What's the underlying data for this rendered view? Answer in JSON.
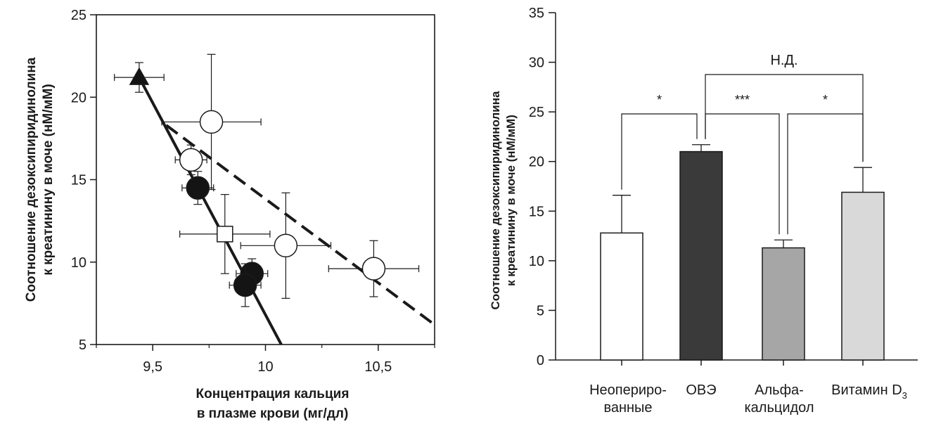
{
  "chart_data": [
    {
      "type": "scatter",
      "title": "",
      "xlabel_lines": [
        "Концентрация кальция",
        "в плазме крови (мг/дл)"
      ],
      "ylabel_lines": [
        "Соотношение дезоксипиридинолина",
        "к креатинину в моче (нМ/мМ)"
      ],
      "xlim": [
        9.25,
        10.75
      ],
      "ylim": [
        5,
        25
      ],
      "x_ticks": [
        9.5,
        10,
        10.5
      ],
      "x_tick_labels": [
        "9,5",
        "10",
        "10,5"
      ],
      "y_ticks": [
        5,
        10,
        15,
        20,
        25
      ],
      "y_tick_labels": [
        "5",
        "10",
        "15",
        "20",
        "25"
      ],
      "grid": false,
      "points": [
        {
          "marker": "triangle",
          "fill": "filled",
          "x": 9.44,
          "y": 21.2,
          "xerr": 0.11,
          "yerr": 0.9
        },
        {
          "marker": "circle",
          "fill": "open",
          "x": 9.76,
          "y": 18.5,
          "xerr": 0.22,
          "yerr": 4.1
        },
        {
          "marker": "circle",
          "fill": "open",
          "x": 9.67,
          "y": 16.2,
          "xerr": 0.07,
          "yerr": 0.9
        },
        {
          "marker": "circle",
          "fill": "filled",
          "x": 9.7,
          "y": 14.5,
          "xerr": 0.07,
          "yerr": 1.0
        },
        {
          "marker": "square",
          "fill": "open",
          "x": 9.82,
          "y": 11.7,
          "xerr": 0.2,
          "yerr": 2.4
        },
        {
          "marker": "circle",
          "fill": "open",
          "x": 10.09,
          "y": 11.0,
          "xerr": 0.2,
          "yerr": 3.2
        },
        {
          "marker": "circle",
          "fill": "filled",
          "x": 9.94,
          "y": 9.3,
          "xerr": 0.07,
          "yerr": 0.9
        },
        {
          "marker": "circle",
          "fill": "filled",
          "x": 9.91,
          "y": 8.6,
          "xerr": 0.07,
          "yerr": 1.3
        },
        {
          "marker": "circle",
          "fill": "open",
          "x": 10.48,
          "y": 9.6,
          "xerr": 0.2,
          "yerr": 1.7
        }
      ],
      "lines": [
        {
          "style": "solid",
          "x": [
            9.44,
            10.07
          ],
          "y": [
            21.2,
            5
          ]
        },
        {
          "style": "dashed",
          "x": [
            9.56,
            10.75
          ],
          "y": [
            18.3,
            6.2
          ]
        }
      ]
    },
    {
      "type": "bar",
      "title": "",
      "ylabel_lines": [
        "Соотношение дезоксипиридинолина",
        "к креатинину в моче (нМ/мМ)"
      ],
      "ylim": [
        0,
        35
      ],
      "y_ticks": [
        0,
        5,
        10,
        15,
        20,
        25,
        30,
        35
      ],
      "grid": false,
      "categories": [
        {
          "lines": [
            "Неопериро-",
            "ванные"
          ]
        },
        {
          "lines": [
            "ОВЭ"
          ]
        },
        {
          "lines": [
            "Альфа-",
            "кальцидол"
          ]
        },
        {
          "lines": [
            "Витамин D"
          ],
          "subscript": "3"
        }
      ],
      "values": [
        12.8,
        21.0,
        11.3,
        16.9
      ],
      "errors": [
        3.8,
        0.7,
        0.8,
        2.5
      ],
      "colors": [
        "#ffffff",
        "#3a3a3a",
        "#a6a6a6",
        "#d9d9d9"
      ],
      "significance": [
        {
          "from": 0,
          "to": 1,
          "label": "*"
        },
        {
          "from": 1,
          "to": 2,
          "label": "***"
        },
        {
          "from": 2,
          "to": 3,
          "label": "*"
        },
        {
          "from": 1,
          "to": 3,
          "label": "Н.Д."
        }
      ]
    }
  ]
}
